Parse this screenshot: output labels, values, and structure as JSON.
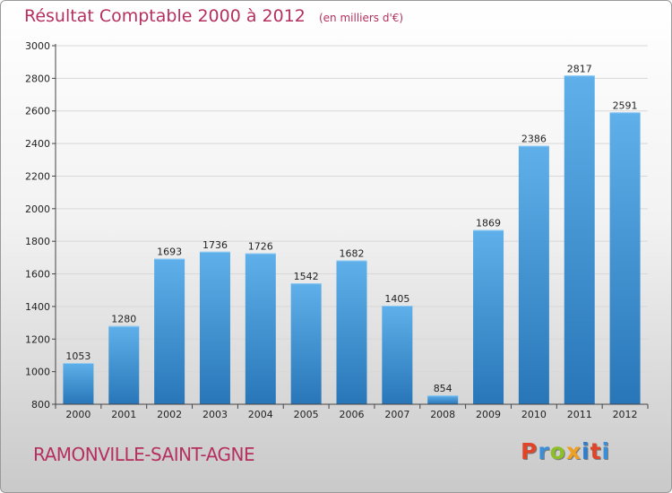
{
  "header": {
    "title": "Résultat Comptable 2000 à 2012",
    "subtitle": "(en milliers d'€)"
  },
  "footer": {
    "city": "RAMONVILLE-SAINT-AGNE",
    "logo_text": "Proxiti",
    "logo_colors": [
      "#e0452a",
      "#3a8fd9",
      "#8dbf2a",
      "#f0a020",
      "#2a7fd0",
      "#e0452a",
      "#3a8fd9"
    ]
  },
  "colors": {
    "title": "#b5305f",
    "bar_light": "#5fb0ea",
    "bar_dark": "#2876b8",
    "grid": "#d8d8d8",
    "axis": "#444444"
  },
  "chart_data": {
    "type": "bar",
    "categories": [
      "2000",
      "2001",
      "2002",
      "2003",
      "2004",
      "2005",
      "2006",
      "2007",
      "2008",
      "2009",
      "2010",
      "2011",
      "2012"
    ],
    "values": [
      1053,
      1280,
      1693,
      1736,
      1726,
      1542,
      1682,
      1405,
      854,
      1869,
      2386,
      2817,
      2591
    ],
    "data_labels": [
      "1053",
      "1280",
      "1693",
      "1736",
      "1726",
      "1542",
      "1682",
      "1405",
      "854",
      "1869",
      "2386",
      "2817",
      "2591"
    ],
    "ylim": [
      800,
      3000
    ],
    "yticks": [
      800,
      1000,
      1200,
      1400,
      1600,
      1800,
      2000,
      2200,
      2400,
      2600,
      2800,
      3000
    ],
    "ytick_labels": [
      "800",
      "1000",
      "1200",
      "1400",
      "1600",
      "1800",
      "2000",
      "2200",
      "2400",
      "2600",
      "2800",
      "3000"
    ],
    "grid": true
  }
}
